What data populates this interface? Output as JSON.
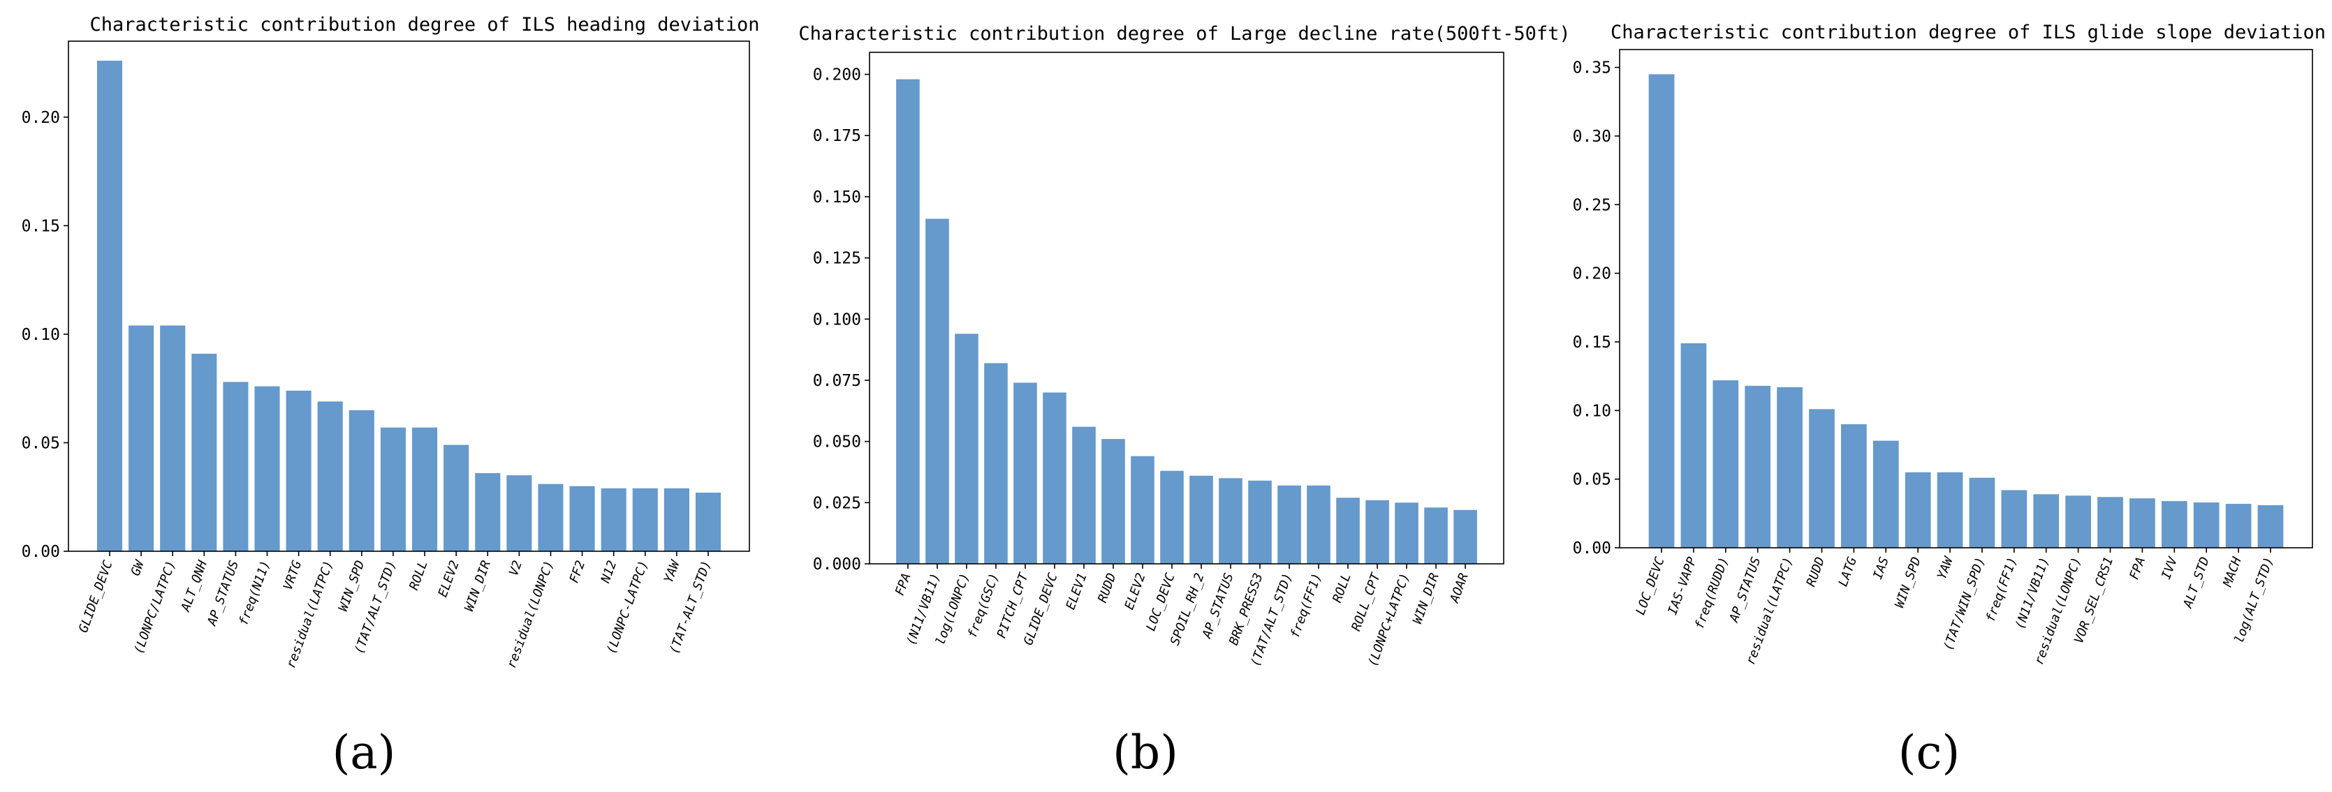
{
  "figure": {
    "panel_labels": [
      "(a)",
      "(b)",
      "(c)"
    ]
  },
  "chart_data": [
    {
      "type": "bar",
      "title": "Characteristic contribution degree of ILS heading deviation",
      "xlabel": "",
      "ylabel": "",
      "ylim": [
        0,
        0.235
      ],
      "yticks": [
        0.0,
        0.05,
        0.1,
        0.15,
        0.2
      ],
      "ytick_labels": [
        "0.00",
        "0.05",
        "0.10",
        "0.15",
        "0.20"
      ],
      "bar_color": "#6699cc",
      "categories": [
        "GLIDE_DEVC",
        "GW",
        "(LONPC/LATPC)",
        "ALT_QNH",
        "AP_STATUS",
        "freq(N11)",
        "VRTG",
        "residual(LATPC)",
        "WIN_SPD",
        "(TAT/ALT_STD)",
        "ROLL",
        "ELEV2",
        "WIN_DIR",
        "V2",
        "residual(LONPC)",
        "FF2",
        "N12",
        "(LONPC-LATPC)",
        "YAW",
        "(TAT-ALT_STD)"
      ],
      "values": [
        0.226,
        0.104,
        0.104,
        0.091,
        0.078,
        0.076,
        0.074,
        0.069,
        0.065,
        0.057,
        0.057,
        0.049,
        0.036,
        0.035,
        0.031,
        0.03,
        0.029,
        0.029,
        0.029,
        0.027
      ]
    },
    {
      "type": "bar",
      "title": "Characteristic contribution degree of Large decline rate(500ft-50ft)",
      "xlabel": "",
      "ylabel": "",
      "ylim": [
        0,
        0.209
      ],
      "yticks": [
        0.0,
        0.025,
        0.05,
        0.075,
        0.1,
        0.125,
        0.15,
        0.175,
        0.2
      ],
      "ytick_labels": [
        "0.000",
        "0.025",
        "0.050",
        "0.075",
        "0.100",
        "0.125",
        "0.150",
        "0.175",
        "0.200"
      ],
      "bar_color": "#6699cc",
      "categories": [
        "FPA",
        "(N11/VB11)",
        "log(LONPC)",
        "freq(GSC)",
        "PITCH_CPT",
        "GLIDE_DEVC",
        "ELEV1",
        "RUDD",
        "ELEV2",
        "LOC_DEVC",
        "SPOIL_RH_2",
        "AP_STATUS",
        "BRK_PRESS3",
        "(TAT/ALT_STD)",
        "freq(FF1)",
        "ROLL",
        "ROLL_CPT",
        "(LONPC+LATPC)",
        "WIN_DIR",
        "AOAR"
      ],
      "values": [
        0.198,
        0.141,
        0.094,
        0.082,
        0.074,
        0.07,
        0.056,
        0.051,
        0.044,
        0.038,
        0.036,
        0.035,
        0.034,
        0.032,
        0.032,
        0.027,
        0.026,
        0.025,
        0.023,
        0.022
      ]
    },
    {
      "type": "bar",
      "title": "Characteristic contribution degree of ILS glide slope deviation",
      "xlabel": "",
      "ylabel": "",
      "ylim": [
        0,
        0.363
      ],
      "yticks": [
        0.0,
        0.05,
        0.1,
        0.15,
        0.2,
        0.25,
        0.3,
        0.35
      ],
      "ytick_labels": [
        "0.00",
        "0.05",
        "0.10",
        "0.15",
        "0.20",
        "0.25",
        "0.30",
        "0.35"
      ],
      "bar_color": "#6699cc",
      "categories": [
        "LOC_DEVC",
        "IAS-VAPP",
        "freq(RUDD)",
        "AP_STATUS",
        "residual(LATPC)",
        "RUDD",
        "LATG",
        "IAS",
        "WIN_SPD",
        "YAW",
        "(TAT/WIN_SPD)",
        "freq(FF1)",
        "(N11/VB11)",
        "residual(LONPC)",
        "VOR_SEL_CRS1",
        "FPA",
        "IVV",
        "ALT_STD",
        "MACH",
        "log(ALT_STD)"
      ],
      "values": [
        0.345,
        0.149,
        0.122,
        0.118,
        0.117,
        0.101,
        0.09,
        0.078,
        0.055,
        0.055,
        0.051,
        0.042,
        0.039,
        0.038,
        0.037,
        0.036,
        0.034,
        0.033,
        0.032,
        0.031
      ]
    }
  ]
}
